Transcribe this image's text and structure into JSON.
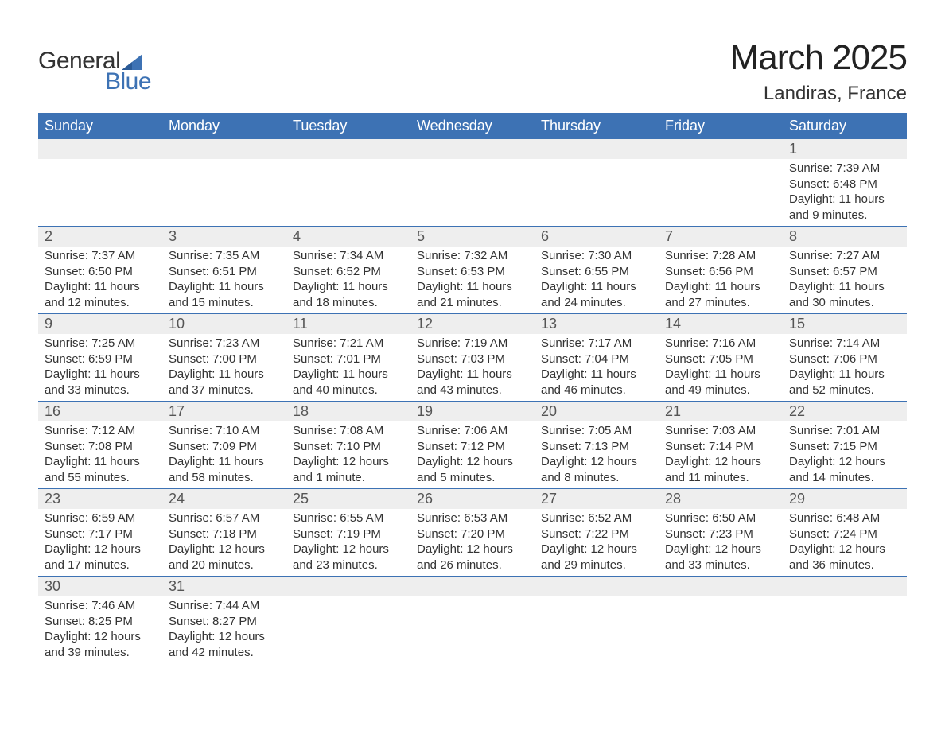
{
  "logo": {
    "general": "General",
    "blue": "Blue"
  },
  "title": "March 2025",
  "location": "Landiras, France",
  "colors": {
    "header_bg": "#3d72b4",
    "header_text": "#ffffff",
    "date_bg": "#eeeeee",
    "border": "#3d72b4",
    "body_text": "#333333",
    "logo_blue": "#3d72b4"
  },
  "day_names": [
    "Sunday",
    "Monday",
    "Tuesday",
    "Wednesday",
    "Thursday",
    "Friday",
    "Saturday"
  ],
  "weeks": [
    {
      "dates": [
        "",
        "",
        "",
        "",
        "",
        "",
        "1"
      ],
      "details": [
        null,
        null,
        null,
        null,
        null,
        null,
        {
          "sunrise": "Sunrise: 7:39 AM",
          "sunset": "Sunset: 6:48 PM",
          "day1": "Daylight: 11 hours",
          "day2": "and 9 minutes."
        }
      ]
    },
    {
      "dates": [
        "2",
        "3",
        "4",
        "5",
        "6",
        "7",
        "8"
      ],
      "details": [
        {
          "sunrise": "Sunrise: 7:37 AM",
          "sunset": "Sunset: 6:50 PM",
          "day1": "Daylight: 11 hours",
          "day2": "and 12 minutes."
        },
        {
          "sunrise": "Sunrise: 7:35 AM",
          "sunset": "Sunset: 6:51 PM",
          "day1": "Daylight: 11 hours",
          "day2": "and 15 minutes."
        },
        {
          "sunrise": "Sunrise: 7:34 AM",
          "sunset": "Sunset: 6:52 PM",
          "day1": "Daylight: 11 hours",
          "day2": "and 18 minutes."
        },
        {
          "sunrise": "Sunrise: 7:32 AM",
          "sunset": "Sunset: 6:53 PM",
          "day1": "Daylight: 11 hours",
          "day2": "and 21 minutes."
        },
        {
          "sunrise": "Sunrise: 7:30 AM",
          "sunset": "Sunset: 6:55 PM",
          "day1": "Daylight: 11 hours",
          "day2": "and 24 minutes."
        },
        {
          "sunrise": "Sunrise: 7:28 AM",
          "sunset": "Sunset: 6:56 PM",
          "day1": "Daylight: 11 hours",
          "day2": "and 27 minutes."
        },
        {
          "sunrise": "Sunrise: 7:27 AM",
          "sunset": "Sunset: 6:57 PM",
          "day1": "Daylight: 11 hours",
          "day2": "and 30 minutes."
        }
      ]
    },
    {
      "dates": [
        "9",
        "10",
        "11",
        "12",
        "13",
        "14",
        "15"
      ],
      "details": [
        {
          "sunrise": "Sunrise: 7:25 AM",
          "sunset": "Sunset: 6:59 PM",
          "day1": "Daylight: 11 hours",
          "day2": "and 33 minutes."
        },
        {
          "sunrise": "Sunrise: 7:23 AM",
          "sunset": "Sunset: 7:00 PM",
          "day1": "Daylight: 11 hours",
          "day2": "and 37 minutes."
        },
        {
          "sunrise": "Sunrise: 7:21 AM",
          "sunset": "Sunset: 7:01 PM",
          "day1": "Daylight: 11 hours",
          "day2": "and 40 minutes."
        },
        {
          "sunrise": "Sunrise: 7:19 AM",
          "sunset": "Sunset: 7:03 PM",
          "day1": "Daylight: 11 hours",
          "day2": "and 43 minutes."
        },
        {
          "sunrise": "Sunrise: 7:17 AM",
          "sunset": "Sunset: 7:04 PM",
          "day1": "Daylight: 11 hours",
          "day2": "and 46 minutes."
        },
        {
          "sunrise": "Sunrise: 7:16 AM",
          "sunset": "Sunset: 7:05 PM",
          "day1": "Daylight: 11 hours",
          "day2": "and 49 minutes."
        },
        {
          "sunrise": "Sunrise: 7:14 AM",
          "sunset": "Sunset: 7:06 PM",
          "day1": "Daylight: 11 hours",
          "day2": "and 52 minutes."
        }
      ]
    },
    {
      "dates": [
        "16",
        "17",
        "18",
        "19",
        "20",
        "21",
        "22"
      ],
      "details": [
        {
          "sunrise": "Sunrise: 7:12 AM",
          "sunset": "Sunset: 7:08 PM",
          "day1": "Daylight: 11 hours",
          "day2": "and 55 minutes."
        },
        {
          "sunrise": "Sunrise: 7:10 AM",
          "sunset": "Sunset: 7:09 PM",
          "day1": "Daylight: 11 hours",
          "day2": "and 58 minutes."
        },
        {
          "sunrise": "Sunrise: 7:08 AM",
          "sunset": "Sunset: 7:10 PM",
          "day1": "Daylight: 12 hours",
          "day2": "and 1 minute."
        },
        {
          "sunrise": "Sunrise: 7:06 AM",
          "sunset": "Sunset: 7:12 PM",
          "day1": "Daylight: 12 hours",
          "day2": "and 5 minutes."
        },
        {
          "sunrise": "Sunrise: 7:05 AM",
          "sunset": "Sunset: 7:13 PM",
          "day1": "Daylight: 12 hours",
          "day2": "and 8 minutes."
        },
        {
          "sunrise": "Sunrise: 7:03 AM",
          "sunset": "Sunset: 7:14 PM",
          "day1": "Daylight: 12 hours",
          "day2": "and 11 minutes."
        },
        {
          "sunrise": "Sunrise: 7:01 AM",
          "sunset": "Sunset: 7:15 PM",
          "day1": "Daylight: 12 hours",
          "day2": "and 14 minutes."
        }
      ]
    },
    {
      "dates": [
        "23",
        "24",
        "25",
        "26",
        "27",
        "28",
        "29"
      ],
      "details": [
        {
          "sunrise": "Sunrise: 6:59 AM",
          "sunset": "Sunset: 7:17 PM",
          "day1": "Daylight: 12 hours",
          "day2": "and 17 minutes."
        },
        {
          "sunrise": "Sunrise: 6:57 AM",
          "sunset": "Sunset: 7:18 PM",
          "day1": "Daylight: 12 hours",
          "day2": "and 20 minutes."
        },
        {
          "sunrise": "Sunrise: 6:55 AM",
          "sunset": "Sunset: 7:19 PM",
          "day1": "Daylight: 12 hours",
          "day2": "and 23 minutes."
        },
        {
          "sunrise": "Sunrise: 6:53 AM",
          "sunset": "Sunset: 7:20 PM",
          "day1": "Daylight: 12 hours",
          "day2": "and 26 minutes."
        },
        {
          "sunrise": "Sunrise: 6:52 AM",
          "sunset": "Sunset: 7:22 PM",
          "day1": "Daylight: 12 hours",
          "day2": "and 29 minutes."
        },
        {
          "sunrise": "Sunrise: 6:50 AM",
          "sunset": "Sunset: 7:23 PM",
          "day1": "Daylight: 12 hours",
          "day2": "and 33 minutes."
        },
        {
          "sunrise": "Sunrise: 6:48 AM",
          "sunset": "Sunset: 7:24 PM",
          "day1": "Daylight: 12 hours",
          "day2": "and 36 minutes."
        }
      ]
    },
    {
      "dates": [
        "30",
        "31",
        "",
        "",
        "",
        "",
        ""
      ],
      "details": [
        {
          "sunrise": "Sunrise: 7:46 AM",
          "sunset": "Sunset: 8:25 PM",
          "day1": "Daylight: 12 hours",
          "day2": "and 39 minutes."
        },
        {
          "sunrise": "Sunrise: 7:44 AM",
          "sunset": "Sunset: 8:27 PM",
          "day1": "Daylight: 12 hours",
          "day2": "and 42 minutes."
        },
        null,
        null,
        null,
        null,
        null
      ]
    }
  ]
}
